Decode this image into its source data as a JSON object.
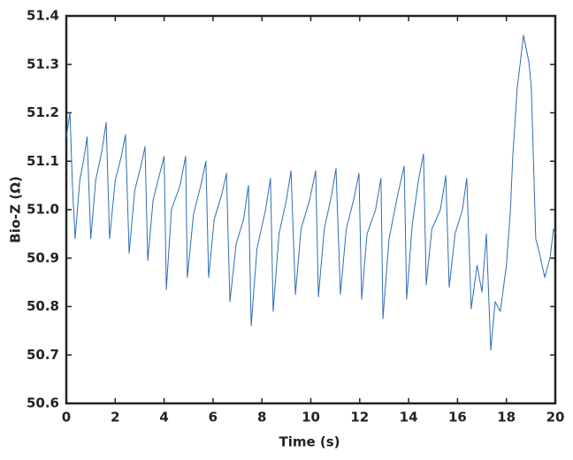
{
  "chart_data": {
    "type": "line",
    "x_label": "Time (s)",
    "y_label": "Bio-Z (Ω)",
    "x": [
      0,
      0.15,
      0.25,
      0.36,
      0.55,
      0.7,
      0.85,
      1.0,
      1.2,
      1.45,
      1.63,
      1.77,
      2.0,
      2.25,
      2.42,
      2.57,
      2.8,
      3.05,
      3.22,
      3.33,
      3.55,
      3.8,
      4.0,
      4.09,
      4.3,
      4.65,
      4.88,
      4.95,
      5.2,
      5.5,
      5.71,
      5.82,
      6.05,
      6.35,
      6.55,
      6.69,
      6.95,
      7.25,
      7.45,
      7.56,
      7.8,
      8.15,
      8.35,
      8.46,
      8.7,
      9.0,
      9.19,
      9.37,
      9.6,
      9.95,
      10.2,
      10.31,
      10.55,
      10.85,
      11.03,
      11.21,
      11.45,
      11.75,
      11.97,
      12.08,
      12.3,
      12.65,
      12.87,
      12.95,
      13.2,
      13.55,
      13.82,
      13.92,
      14.15,
      14.4,
      14.61,
      14.72,
      14.95,
      15.3,
      15.52,
      15.66,
      15.9,
      16.2,
      16.38,
      16.56,
      16.8,
      17.0,
      17.18,
      17.36,
      17.54,
      17.75,
      18.0,
      18.16,
      18.26,
      18.44,
      18.7,
      18.92,
      19.02,
      19.2,
      19.35,
      19.57,
      19.78,
      19.93,
      20
    ],
    "values": [
      51.15,
      51.2,
      51.05,
      50.94,
      51.06,
      51.1,
      51.15,
      50.94,
      51.06,
      51.12,
      51.18,
      50.94,
      51.06,
      51.11,
      51.155,
      50.91,
      51.04,
      51.09,
      51.13,
      50.895,
      51.02,
      51.07,
      51.11,
      50.835,
      51.0,
      51.05,
      51.11,
      50.86,
      50.99,
      51.05,
      51.1,
      50.86,
      50.98,
      51.03,
      51.075,
      50.81,
      50.93,
      50.98,
      51.05,
      50.76,
      50.92,
      51.0,
      51.065,
      50.79,
      50.95,
      51.02,
      51.08,
      50.825,
      50.96,
      51.02,
      51.08,
      50.82,
      50.96,
      51.03,
      51.085,
      50.825,
      50.96,
      51.02,
      51.075,
      50.815,
      50.95,
      51.0,
      51.065,
      50.775,
      50.94,
      51.03,
      51.09,
      50.815,
      50.97,
      51.06,
      51.115,
      50.845,
      50.96,
      51.0,
      51.07,
      50.84,
      50.95,
      51.0,
      51.065,
      50.795,
      50.885,
      50.83,
      50.95,
      50.71,
      50.81,
      50.79,
      50.885,
      50.995,
      51.11,
      51.25,
      51.36,
      51.305,
      51.25,
      50.94,
      50.91,
      50.86,
      50.9,
      50.96,
      50.95
    ],
    "color": "#2e6db4",
    "xlim": [
      0,
      20
    ],
    "xticks": [
      0,
      2,
      4,
      6,
      8,
      10,
      12,
      14,
      16,
      18,
      20
    ],
    "ylim": [
      50.6,
      51.4
    ],
    "yticks": [
      50.6,
      50.7,
      50.8,
      50.9,
      {
        "value": 51,
        "label": "51.0"
      },
      51.1,
      51.2,
      51.3,
      51.4
    ],
    "grid": false
  }
}
